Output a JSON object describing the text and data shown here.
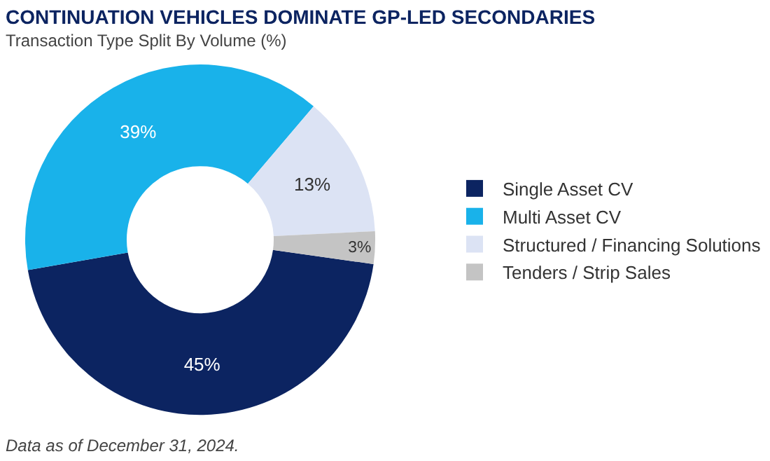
{
  "chart_data": {
    "type": "donut",
    "title": "CONTINUATION VEHICLES DOMINATE GP-LED SECONDARIES",
    "subtitle": "Transaction Type Split By Volume (%)",
    "categories": [
      "Single Asset CV",
      "Multi Asset CV",
      "Structured / Financing Solutions",
      "Tenders / Strip Sales"
    ],
    "values": [
      45,
      39,
      13,
      3
    ],
    "colors": [
      "#0c2461",
      "#19b2ea",
      "#dce3f4",
      "#c4c4c4"
    ],
    "value_labels": [
      "45%",
      "39%",
      "13%",
      "3%"
    ],
    "legend": "right",
    "annotations": [
      "Data as of December 31, 2024."
    ]
  }
}
